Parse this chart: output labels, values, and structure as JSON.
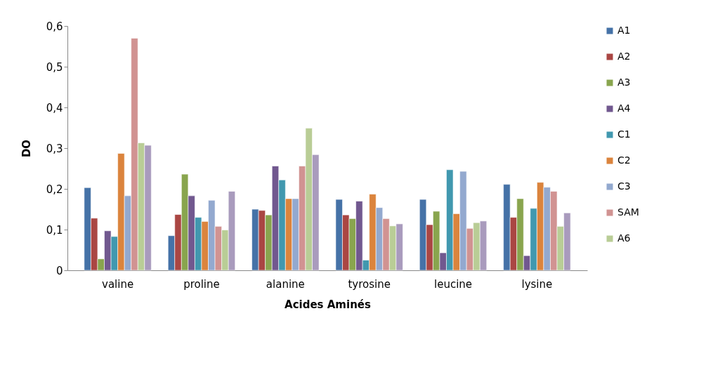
{
  "chart_data": {
    "type": "bar",
    "xlabel": "Acides Aminés",
    "ylabel": "DO",
    "categories": [
      "valine",
      "proline",
      "alanine",
      "tyrosine",
      "leucine",
      "lysine"
    ],
    "ylim": [
      0,
      0.6
    ],
    "yticks": [
      0,
      {
        "value": 0.1,
        "label": "0,1"
      },
      {
        "value": 0.2,
        "label": "0,2"
      },
      {
        "value": 0.3,
        "label": "0,3"
      },
      {
        "value": 0.4,
        "label": "0,4"
      },
      {
        "value": 0.5,
        "label": "0,5"
      },
      {
        "value": 0.6,
        "label": "0,6"
      }
    ],
    "grid": false,
    "legend": "right",
    "series": [
      {
        "name": "A1",
        "color": "#4572a7",
        "values": [
          0.203,
          0.085,
          0.15,
          0.174,
          0.174,
          0.211
        ]
      },
      {
        "name": "A2",
        "color": "#aa4643",
        "values": [
          0.128,
          0.137,
          0.147,
          0.136,
          0.112,
          0.13
        ]
      },
      {
        "name": "A3",
        "color": "#89a54e",
        "values": [
          0.028,
          0.236,
          0.136,
          0.127,
          0.145,
          0.176
        ]
      },
      {
        "name": "A4",
        "color": "#71588f",
        "values": [
          0.097,
          0.183,
          0.256,
          0.17,
          0.043,
          0.036
        ]
      },
      {
        "name": "C1",
        "color": "#4198af",
        "values": [
          0.083,
          0.13,
          0.222,
          0.025,
          0.247,
          0.152
        ]
      },
      {
        "name": "C2",
        "color": "#db843d",
        "values": [
          0.287,
          0.12,
          0.176,
          0.187,
          0.139,
          0.216
        ]
      },
      {
        "name": "C3",
        "color": "#93a9cf",
        "values": [
          0.183,
          0.172,
          0.176,
          0.154,
          0.243,
          0.204
        ]
      },
      {
        "name": "SAM",
        "color": "#d19392",
        "values": [
          0.57,
          0.108,
          0.256,
          0.127,
          0.103,
          0.194
        ]
      },
      {
        "name": "A6",
        "color": "#b9cd96",
        "values": [
          0.313,
          0.099,
          0.349,
          0.109,
          0.117,
          0.108
        ]
      },
      {
        "color": "#a99bbd",
        "values": [
          0.307,
          0.194,
          0.284,
          0.114,
          0.121,
          0.141
        ]
      }
    ]
  }
}
